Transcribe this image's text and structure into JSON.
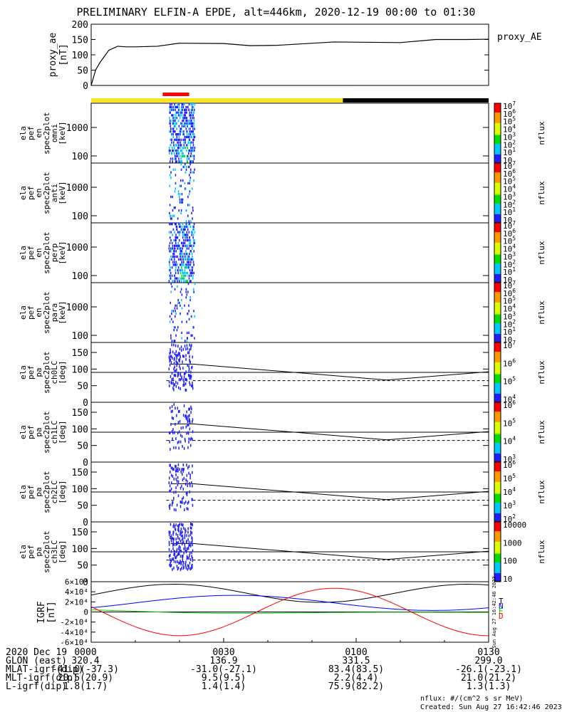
{
  "title": "PRELIMINARY ELFIN-A EPDE, alt=446km, 2020-12-19 00:00 to 01:30",
  "chart_data": [
    {
      "type": "line",
      "panel": "proxy_ae",
      "ylabel": [
        "proxy_ae",
        "[nT]"
      ],
      "legend": "proxy_AE",
      "ylim": [
        0,
        200
      ],
      "yticks": [
        "0",
        "50",
        "100",
        "150",
        "200"
      ],
      "x_minutes": [
        0,
        1,
        2,
        4,
        6,
        8,
        10,
        15,
        20,
        30,
        36,
        42,
        55,
        70,
        78,
        85,
        90
      ],
      "series": [
        {
          "values": [
            0,
            50,
            75,
            115,
            128,
            126,
            126,
            128,
            138,
            137,
            130,
            131,
            142,
            140,
            150,
            150,
            151
          ]
        }
      ]
    },
    {
      "type": "bar",
      "panel": "status_bar",
      "segments": [
        {
          "from_min": 0,
          "to_min": 57,
          "color": "#f8e424"
        },
        {
          "from_min": 57,
          "to_min": 90,
          "color": "#000000"
        }
      ],
      "highlight": {
        "from_min": 17,
        "to_min": 23,
        "color": "#ff0000"
      }
    },
    {
      "type": "heatmap",
      "panel": "spec_omni",
      "ylabel": [
        "ela",
        "pef",
        "en",
        "spec2plot",
        "omni",
        "[keV]"
      ],
      "yticks": [
        "100",
        "1000"
      ],
      "colorbar": {
        "ticks": [
          "10",
          "10^1",
          "10^2",
          "10^3",
          "10^4",
          "10^5",
          "10^6",
          "10^7"
        ],
        "label": "nflux"
      }
    },
    {
      "type": "heatmap",
      "panel": "spec_anti",
      "ylabel": [
        "ela",
        "pef",
        "en",
        "spec2plot",
        "anti",
        "[keV]"
      ],
      "yticks": [
        "100",
        "1000"
      ],
      "colorbar": {
        "ticks": [
          "10",
          "10^1",
          "10^2",
          "10^3",
          "10^4",
          "10^5",
          "10^6",
          "10^7"
        ],
        "label": "nflux"
      }
    },
    {
      "type": "heatmap",
      "panel": "spec_perp",
      "ylabel": [
        "ela",
        "pef",
        "en",
        "spec2plot",
        "perp",
        "[keV]"
      ],
      "yticks": [
        "100",
        "1000"
      ],
      "colorbar": {
        "ticks": [
          "10",
          "10^1",
          "10^2",
          "10^3",
          "10^4",
          "10^5",
          "10^6",
          "10^7"
        ],
        "label": "nflux"
      }
    },
    {
      "type": "heatmap",
      "panel": "spec_para",
      "ylabel": [
        "ela",
        "pef",
        "en",
        "spec2plot",
        "para",
        "[keV]"
      ],
      "yticks": [
        "100",
        "1000"
      ],
      "colorbar": {
        "ticks": [
          "10",
          "10^1",
          "10^2",
          "10^3",
          "10^4",
          "10^5",
          "10^6",
          "10^7"
        ],
        "label": "nflux"
      }
    },
    {
      "type": "heatmap",
      "panel": "pa_ch0",
      "ylabel": [
        "ela",
        "pef",
        "pa",
        "spec2plot",
        "ch0LC",
        "[deg]"
      ],
      "ylim": [
        0,
        180
      ],
      "yticks": [
        "0",
        "50",
        "100",
        "150"
      ],
      "colorbar": {
        "ticks": [
          "10^4",
          "10^5",
          "10^6",
          "10^7"
        ],
        "label": "nflux"
      }
    },
    {
      "type": "heatmap",
      "panel": "pa_ch1",
      "ylabel": [
        "ela",
        "pef",
        "pa",
        "spec2plot",
        "ch1LC",
        "[deg]"
      ],
      "ylim": [
        0,
        180
      ],
      "yticks": [
        "0",
        "50",
        "100",
        "150"
      ],
      "colorbar": {
        "ticks": [
          "10^3",
          "10^4",
          "10^5",
          "10^6"
        ],
        "label": "nflux"
      }
    },
    {
      "type": "heatmap",
      "panel": "pa_ch2",
      "ylabel": [
        "ela",
        "pef",
        "pa",
        "spec2plot",
        "ch2LC",
        "[deg]"
      ],
      "ylim": [
        0,
        180
      ],
      "yticks": [
        "0",
        "50",
        "100",
        "150"
      ],
      "colorbar": {
        "ticks": [
          "10^2",
          "10^3",
          "10^4",
          "10^5",
          "10^6"
        ],
        "label": "nflux"
      }
    },
    {
      "type": "heatmap",
      "panel": "pa_ch3",
      "ylabel": [
        "ela",
        "pef",
        "pa",
        "spec2plot",
        "ch3LC",
        "[deg]"
      ],
      "ylim": [
        0,
        180
      ],
      "yticks": [
        "0",
        "50",
        "100",
        "150"
      ],
      "colorbar": {
        "ticks": [
          "10",
          "100",
          "1000",
          "10000"
        ],
        "label": "nflux"
      }
    },
    {
      "type": "line",
      "panel": "igrf",
      "ylabel": [
        "IGRF",
        "[nT]"
      ],
      "ylim": [
        -60000,
        60000
      ],
      "yticks": [
        "-6×10⁴",
        "-4×10⁴",
        "-2×10⁴",
        "0",
        "2×10⁴",
        "4×10⁴",
        "6×10⁴"
      ],
      "legend": [
        {
          "name": "T",
          "color": "#000000"
        },
        {
          "name": "N",
          "color": "#0000ff"
        },
        {
          "name": "E",
          "color": "#00cc00"
        },
        {
          "name": "D",
          "color": "#ff0000"
        }
      ],
      "side_text": "Sun Aug 27 16:42:46 2023"
    }
  ],
  "xaxis": {
    "tick_labels": [
      "0000",
      "0030",
      "0100",
      "0130"
    ],
    "rows": [
      {
        "label": "2020 Dec 19",
        "values": [
          "0000",
          "0030",
          "0100",
          "0130"
        ]
      },
      {
        "label": "GLON (east)",
        "values": [
          "320.4",
          "136.9",
          "331.5",
          "299.0"
        ]
      },
      {
        "label": "MLAT-igrf(dip)",
        "values": [
          "-41.0(-37.3)",
          "-31.0(-27.1)",
          "83.4(83.5)",
          "-26.1(-23.1)"
        ]
      },
      {
        "label": "MLT-igrf(dip)",
        "values": [
          "20.5(20.9)",
          "9.5(9.5)",
          "2.2(4.4)",
          "21.0(21.2)"
        ]
      },
      {
        "label": "L-igrf(dip)",
        "values": [
          "1.8(1.7)",
          "1.4(1.4)",
          "75.9(82.2)",
          "1.3(1.3)"
        ]
      }
    ]
  },
  "footer": {
    "units": "nflux: #/(cm^2 s sr MeV)",
    "created": "Created: Sun Aug 27 16:42:46 2023"
  }
}
